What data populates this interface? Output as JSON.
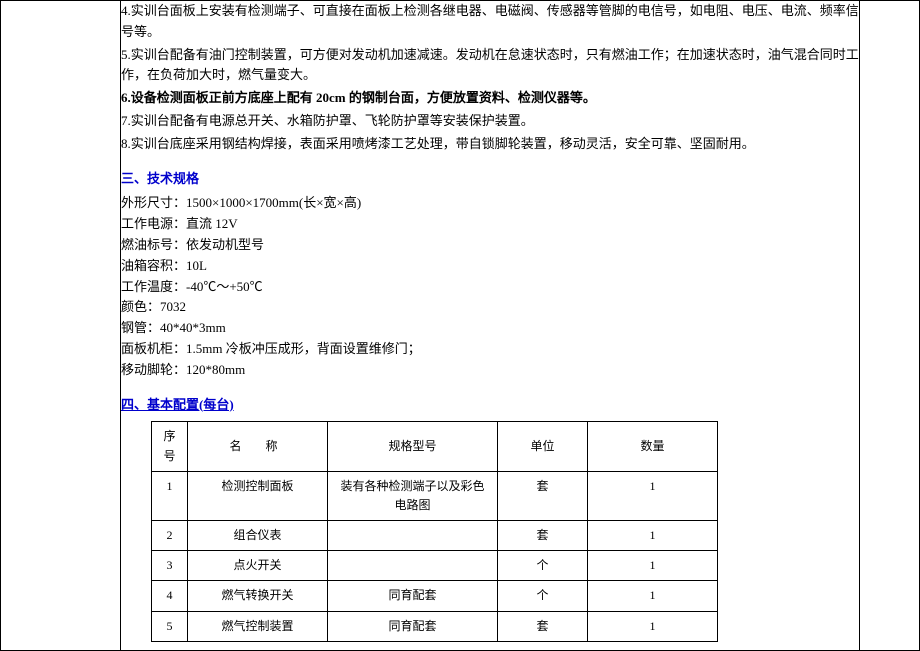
{
  "paragraphs": {
    "p4": "4.实训台面板上安装有检测端子、可直接在面板上检测各继电器、电磁阀、传感器等管脚的电信号，如电阻、电压、电流、频率信号等。",
    "p5": "5.实训台配备有油门控制装置，可方便对发动机加速减速。发动机在怠速状态时，只有燃油工作；在加速状态时，油气混合同时工作，在负荷加大时，燃气量变大。",
    "p6": "6.设备检测面板正前方底座上配有 20cm 的钢制台面，方便放置资料、检测仪器等。",
    "p7": "7.实训台配备有电源总开关、水箱防护罩、飞轮防护罩等安装保护装置。",
    "p8": "8.实训台底座采用钢结构焊接，表面采用喷烤漆工艺处理，带自锁脚轮装置，移动灵活，安全可靠、坚固耐用。"
  },
  "section3": {
    "title": "三、技术规格",
    "lines": [
      "外形尺寸：1500×1000×1700mm(长×宽×高)",
      "工作电源：直流 12V",
      "燃油标号：依发动机型号",
      "油箱容积：10L",
      "工作温度：-40℃～+50℃",
      "颜色：7032",
      "钢管：40*40*3mm",
      "面板机柜：1.5mm 冷板冲压成形，背面设置维修门；",
      "移动脚轮：120*80mm"
    ]
  },
  "section4": {
    "title": "四、基本配置(每台)",
    "headers": {
      "seq": "序号",
      "name": "名称",
      "spec": "规格型号",
      "unit": "单位",
      "qty": "数量"
    },
    "rows": [
      {
        "seq": "1",
        "name": "检测控制面板",
        "spec": "装有各种检测端子以及彩色电路图",
        "unit": "套",
        "qty": "1"
      },
      {
        "seq": "2",
        "name": "组合仪表",
        "spec": "",
        "unit": "套",
        "qty": "1"
      },
      {
        "seq": "3",
        "name": "点火开关",
        "spec": "",
        "unit": "个",
        "qty": "1"
      },
      {
        "seq": "4",
        "name": "燃气转换开关",
        "spec": "同育配套",
        "unit": "个",
        "qty": "1"
      },
      {
        "seq": "5",
        "name": "燃气控制装置",
        "spec": "同育配套",
        "unit": "套",
        "qty": "1"
      }
    ]
  }
}
